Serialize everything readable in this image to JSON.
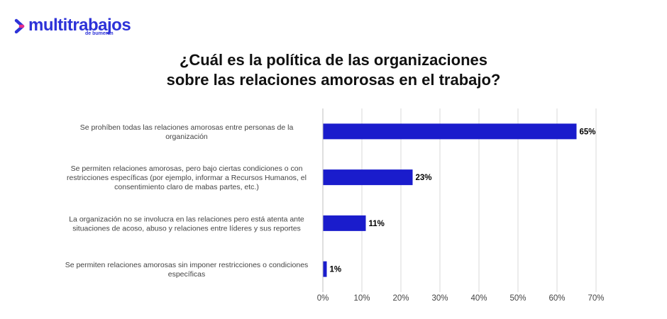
{
  "logo": {
    "wordmark": "multitrabajos",
    "tagline": "de bumeran",
    "brand_color": "#2d32d8",
    "arrow_colors": [
      "#2d32d8",
      "#e8308a"
    ]
  },
  "chart_data": {
    "type": "bar",
    "orientation": "horizontal",
    "title_lines": [
      "¿Cuál es la política de las organizaciones",
      "sobre las relaciones amorosas en el trabajo?"
    ],
    "categories": [
      [
        "Se prohíben todas las relaciones amorosas entre personas de la",
        "organización"
      ],
      [
        "Se permiten relaciones amorosas, pero bajo ciertas condiciones o con",
        "restricciones específicas (por ejemplo, informar a Recursos Humanos, el",
        "consentimiento claro de mabas partes, etc.)"
      ],
      [
        "La organización no se involucra en las relaciones pero está atenta ante",
        "situaciones de acoso, abuso y relaciones entre líderes y sus reportes"
      ],
      [
        "Se permiten relaciones amorosas sin imponer restricciones o condiciones",
        "específicas"
      ]
    ],
    "values": [
      65,
      23,
      11,
      1
    ],
    "value_labels": [
      "65%",
      "23%",
      "11%",
      "1%"
    ],
    "xlim": [
      0,
      70
    ],
    "ticks": [
      "0%",
      "10%",
      "20%",
      "30%",
      "40%",
      "50%",
      "60%",
      "70%"
    ],
    "grid": true,
    "bar_color": "#1a1ccc"
  }
}
